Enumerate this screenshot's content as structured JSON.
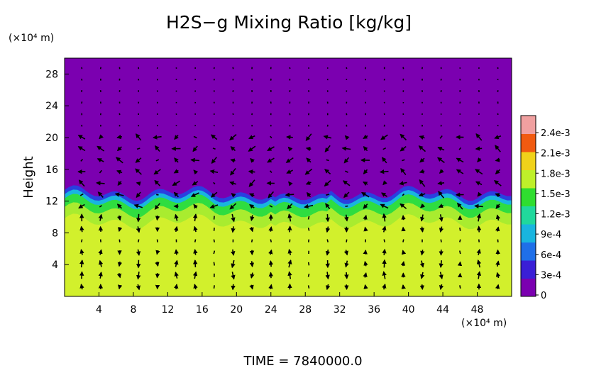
{
  "chart_data": {
    "type": "heatmap",
    "title": "H2S−g Mixing Ratio [kg/kg]",
    "ylabel": "Height",
    "y_unit": "(×10⁴ m)",
    "x_unit": "(×10⁴ m)",
    "x_ticks": [
      "4",
      "8",
      "12",
      "16",
      "20",
      "24",
      "28",
      "32",
      "36",
      "40",
      "44",
      "48"
    ],
    "y_ticks": [
      "4",
      "8",
      "12",
      "16",
      "20",
      "24",
      "28"
    ],
    "xlim": [
      0,
      52
    ],
    "ylim": [
      0,
      30
    ],
    "colorbar": {
      "labels": [
        "0",
        "3e-4",
        "6e-4",
        "9e-4",
        "1.2e-3",
        "1.5e-3",
        "1.8e-3",
        "2.1e-3",
        "2.4e-3"
      ],
      "colors": [
        "#7b00b0",
        "#3a1fd6",
        "#1f6fe8",
        "#19b5df",
        "#20d89c",
        "#2fdd2f",
        "#bff02a",
        "#f0d21a",
        "#f05a10",
        "#f0a0a0"
      ]
    },
    "fields": {
      "upper_value": "0",
      "lower_value": "1.8e-3",
      "interface_height_approx": 13,
      "background_upper_color": "#7b00b0",
      "background_lower_color": "#d2f02c"
    },
    "time_label": "TIME  =  7840000.0"
  }
}
